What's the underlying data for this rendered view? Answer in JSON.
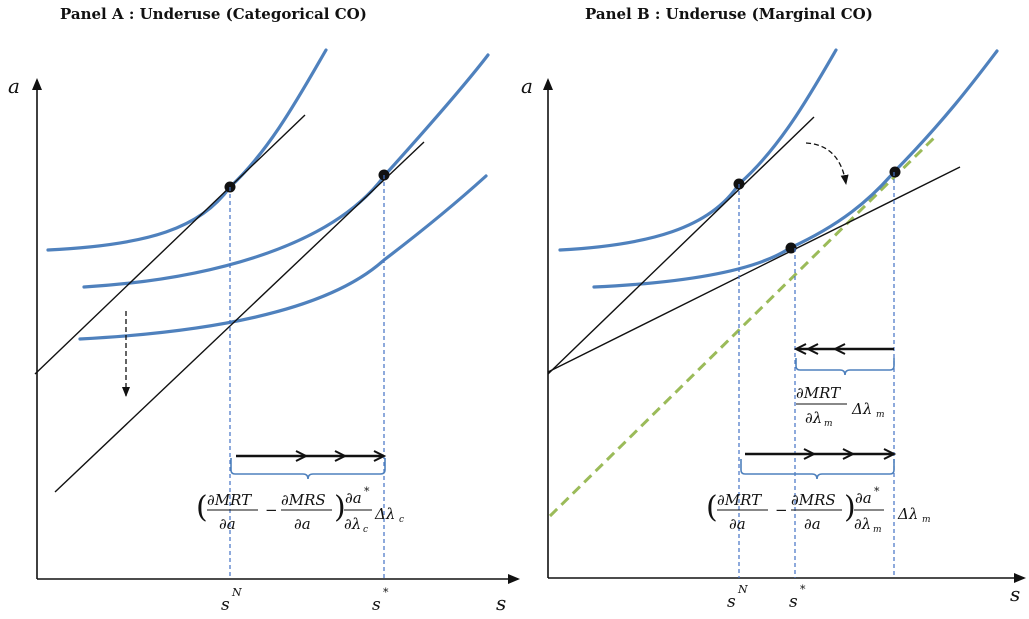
{
  "panel_a": {
    "title": "Panel A : Underuse (Categorical CO)",
    "y_label": "a",
    "x_label": "s",
    "tick_sn_base": "s",
    "tick_sn_sup": "N",
    "tick_sstar_base": "s",
    "tick_sstar_sup": "*",
    "formula": {
      "pmrt": "∂MRT",
      "den_a": "∂a",
      "minus": "−",
      "pmrs": "∂MRS",
      "pa_star": "∂a",
      "star": "*",
      "dlam": "∂λ",
      "sub": "c",
      "delta": "Δλ"
    }
  },
  "panel_b": {
    "title": "Panel B : Underuse (Marginal CO)",
    "y_label": "a",
    "x_label": "s",
    "tick_sn_base": "s",
    "tick_sn_sup": "N",
    "tick_sstar_base": "s",
    "tick_sstar_sup": "*",
    "upper_formula": {
      "pmrt": "∂MRT",
      "dlam": "∂λ",
      "sub": "m",
      "delta": "Δλ"
    },
    "formula": {
      "pmrt": "∂MRT",
      "den_a": "∂a",
      "minus": "−",
      "pmrs": "∂MRS",
      "pa_star": "∂a",
      "star": "*",
      "dlam": "∂λ",
      "sub": "m",
      "delta": "Δλ"
    }
  },
  "colors": {
    "curve": "#4f81bd",
    "guide": "#4472c4",
    "green_line": "#9bbb59",
    "ink": "#111111"
  }
}
